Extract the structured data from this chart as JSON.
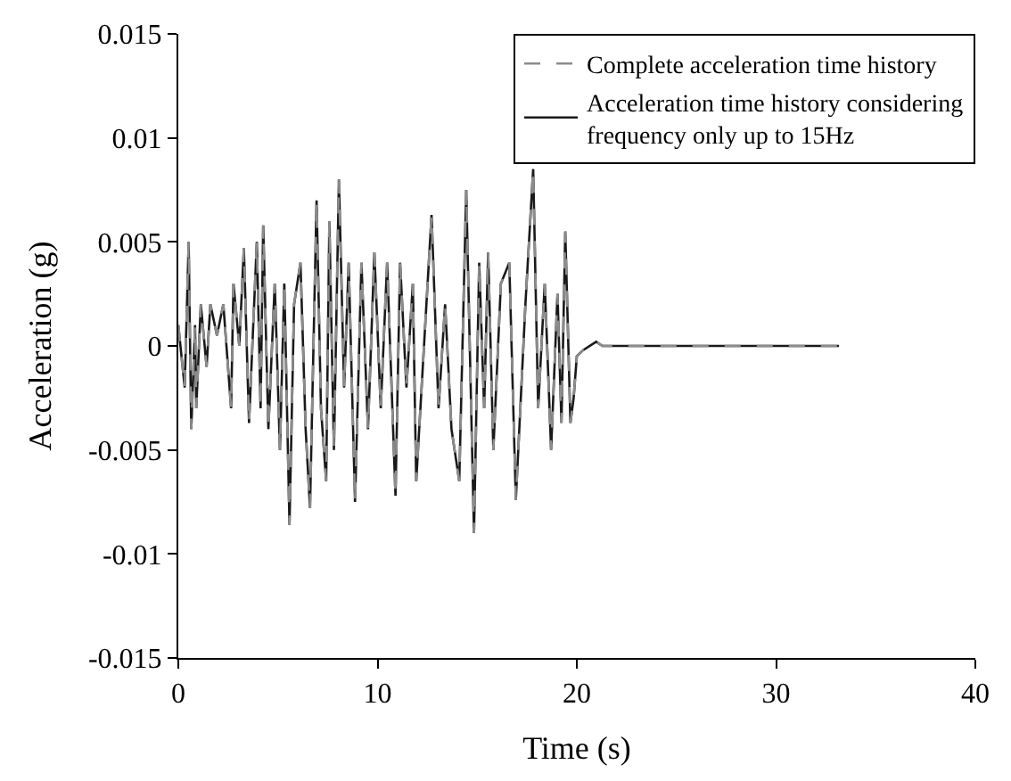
{
  "chart_data": {
    "type": "line",
    "xlabel": "Time (s)",
    "ylabel": "Acceleration (g)",
    "x": [
      0,
      0.32,
      0.52,
      0.65,
      0.84,
      0.9,
      1.13,
      1.42,
      1.61,
      1.94,
      2.26,
      2.65,
      2.77,
      3.06,
      3.29,
      3.55,
      3.94,
      4.13,
      4.26,
      4.52,
      4.84,
      5.1,
      5.32,
      5.58,
      5.81,
      6.13,
      6.39,
      6.61,
      6.94,
      7.16,
      7.42,
      7.58,
      7.81,
      8.06,
      8.32,
      8.55,
      8.87,
      9.19,
      9.52,
      9.84,
      10.16,
      10.48,
      10.9,
      11.13,
      11.45,
      11.77,
      11.94,
      12.71,
      13.06,
      13.39,
      13.71,
      14.1,
      14.45,
      14.84,
      15.1,
      15.35,
      15.55,
      15.81,
      16.19,
      16.61,
      16.94,
      17.42,
      17.81,
      18.06,
      18.39,
      18.71,
      19.03,
      19.23,
      19.42,
      19.68,
      19.84,
      20.0,
      20.32,
      20.97,
      21.29,
      33.16
    ],
    "series": [
      {
        "name": "Acceleration time history considering frequency only up to 15Hz",
        "color": "#1a1a1a",
        "line_style": "solid",
        "values": [
          0.001,
          -0.002,
          0.005,
          -0.004,
          0.001,
          -0.003,
          0.002,
          -0.001,
          0.002,
          0.0005,
          0.002,
          -0.003,
          0.003,
          0.0,
          0.0047,
          -0.0037,
          0.005,
          -0.003,
          0.0058,
          -0.004,
          0.003,
          -0.005,
          0.003,
          -0.0086,
          0.002,
          0.004,
          -0.004,
          -0.0078,
          0.007,
          -0.003,
          -0.0065,
          0.006,
          -0.005,
          0.008,
          -0.002,
          0.004,
          -0.0075,
          0.004,
          -0.004,
          0.0045,
          -0.003,
          0.004,
          -0.0072,
          0.004,
          -0.002,
          0.003,
          -0.0065,
          0.0063,
          -0.003,
          0.002,
          -0.004,
          -0.0065,
          0.0075,
          -0.009,
          0.004,
          -0.003,
          0.0045,
          -0.005,
          0.003,
          0.004,
          -0.0074,
          0.002,
          0.0085,
          -0.003,
          0.003,
          -0.005,
          0.0025,
          -0.0037,
          0.0055,
          -0.0037,
          -0.0025,
          -0.0005,
          -0.0002,
          0.0002,
          0,
          0
        ]
      },
      {
        "name": "Complete acceleration time history",
        "color": "#8c8c8c",
        "line_style": "dashed",
        "values": [
          0.001,
          -0.002,
          0.005,
          -0.004,
          0.001,
          -0.003,
          0.002,
          -0.001,
          0.002,
          0.0005,
          0.002,
          -0.003,
          0.003,
          0.0,
          0.0047,
          -0.0037,
          0.005,
          -0.003,
          0.0058,
          -0.004,
          0.003,
          -0.005,
          0.003,
          -0.0086,
          0.002,
          0.004,
          -0.004,
          -0.0078,
          0.007,
          -0.003,
          -0.0065,
          0.006,
          -0.005,
          0.008,
          -0.002,
          0.004,
          -0.0075,
          0.004,
          -0.004,
          0.0045,
          -0.003,
          0.004,
          -0.0072,
          0.004,
          -0.002,
          0.003,
          -0.0065,
          0.0063,
          -0.003,
          0.002,
          -0.004,
          -0.0065,
          0.0075,
          -0.009,
          0.004,
          -0.003,
          0.0045,
          -0.005,
          0.003,
          0.004,
          -0.0074,
          0.002,
          0.0085,
          -0.003,
          0.003,
          -0.005,
          0.0025,
          -0.0037,
          0.0055,
          -0.0037,
          -0.0025,
          -0.0005,
          -0.0002,
          0.0002,
          0,
          0
        ]
      }
    ],
    "xlim": [
      0,
      40
    ],
    "xticks": [
      0,
      10,
      20,
      30,
      40
    ],
    "ylim": [
      -0.015,
      0.015
    ],
    "yticks": [
      -0.015,
      -0.01,
      -0.005,
      0,
      0.005,
      0.01,
      0.015
    ],
    "legend": "top right",
    "marker": "none"
  }
}
